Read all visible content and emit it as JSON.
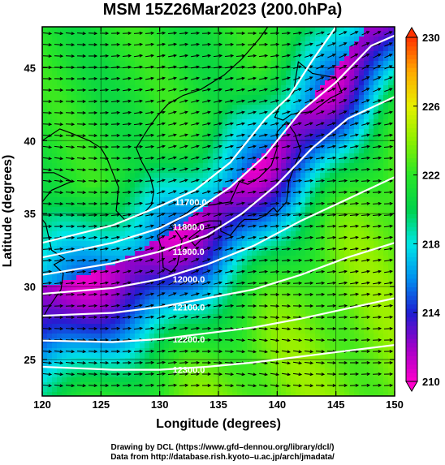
{
  "chart_data": {
    "type": "heatmap",
    "title": "MSM 15Z26Mar2023 (200.0hPa)",
    "xlabel": "Longitude (degrees)",
    "ylabel": "Latitude  (degrees)",
    "xlim": [
      120,
      150
    ],
    "ylim": [
      22.5,
      47.8
    ],
    "x_ticks": [
      120,
      125,
      130,
      135,
      140,
      145,
      150
    ],
    "y_ticks": [
      25,
      30,
      35,
      40,
      45
    ],
    "colorbar": {
      "min": 210,
      "max": 230,
      "ticks": [
        210,
        214,
        218,
        222,
        226,
        230
      ],
      "stops": [
        {
          "value": 210,
          "color": "#ff00cc"
        },
        {
          "value": 212,
          "color": "#a000c8"
        },
        {
          "value": 214,
          "color": "#1e1ed2"
        },
        {
          "value": 216,
          "color": "#0090f0"
        },
        {
          "value": 218,
          "color": "#00e6e6"
        },
        {
          "value": 220,
          "color": "#00d24b"
        },
        {
          "value": 222,
          "color": "#28e628"
        },
        {
          "value": 224,
          "color": "#8cf000"
        },
        {
          "value": 226,
          "color": "#e6f000"
        },
        {
          "value": 228,
          "color": "#ffaa00"
        },
        {
          "value": 230,
          "color": "#ff3200"
        }
      ]
    },
    "contour_labels": [
      "11700.0",
      "11800.0",
      "11900.0",
      "12000.0",
      "12100.0",
      "12200.0",
      "12300.0"
    ],
    "contours": [
      {
        "label": "11700.0",
        "label_pos": [
          131.3,
          35.8
        ],
        "points": [
          [
            120,
            33.0
          ],
          [
            126,
            34.2
          ],
          [
            130,
            35.5
          ],
          [
            133,
            36.6
          ],
          [
            136,
            38.5
          ],
          [
            139,
            41.5
          ],
          [
            141,
            43.0
          ],
          [
            143,
            45.5
          ],
          [
            145,
            47.8
          ]
        ]
      },
      {
        "label": "11800.0",
        "label_pos": [
          131.1,
          34.1
        ],
        "points": [
          [
            120,
            32.0
          ],
          [
            126,
            33.0
          ],
          [
            130,
            34.0
          ],
          [
            133,
            35.2
          ],
          [
            136,
            36.8
          ],
          [
            139,
            39.0
          ],
          [
            142,
            42.0
          ],
          [
            145,
            44.0
          ],
          [
            148,
            46.5
          ],
          [
            150,
            47.2
          ]
        ]
      },
      {
        "label": "11900.0",
        "label_pos": [
          131.1,
          32.4
        ],
        "points": [
          [
            120,
            30.8
          ],
          [
            126,
            31.6
          ],
          [
            130,
            32.4
          ],
          [
            134,
            33.5
          ],
          [
            137,
            35.0
          ],
          [
            140,
            37.0
          ],
          [
            143,
            39.5
          ],
          [
            146,
            41.5
          ],
          [
            150,
            43.0
          ]
        ]
      },
      {
        "label": "12000.0",
        "label_pos": [
          131.1,
          30.5
        ],
        "points": [
          [
            120,
            29.5
          ],
          [
            126,
            29.9
          ],
          [
            130,
            30.5
          ],
          [
            134,
            31.5
          ],
          [
            138,
            32.8
          ],
          [
            142,
            34.5
          ],
          [
            146,
            36.0
          ],
          [
            150,
            37.5
          ]
        ]
      },
      {
        "label": "12100.0",
        "label_pos": [
          131.1,
          28.6
        ],
        "points": [
          [
            120,
            28.0
          ],
          [
            126,
            28.2
          ],
          [
            130,
            28.6
          ],
          [
            134,
            29.2
          ],
          [
            138,
            29.8
          ],
          [
            142,
            30.8
          ],
          [
            146,
            32.0
          ],
          [
            150,
            33.0
          ]
        ]
      },
      {
        "label": "12200.0",
        "label_pos": [
          131.1,
          26.4
        ],
        "points": [
          [
            120,
            26.3
          ],
          [
            126,
            26.2
          ],
          [
            130,
            26.4
          ],
          [
            134,
            26.8
          ],
          [
            138,
            27.2
          ],
          [
            142,
            27.8
          ],
          [
            146,
            28.5
          ],
          [
            150,
            29.2
          ]
        ]
      },
      {
        "label": "12300.0",
        "label_pos": [
          131.1,
          24.3
        ],
        "points": [
          [
            120,
            24.5
          ],
          [
            126,
            24.3
          ],
          [
            130,
            24.3
          ],
          [
            134,
            24.5
          ],
          [
            138,
            24.8
          ],
          [
            142,
            25.2
          ],
          [
            146,
            25.6
          ],
          [
            150,
            26.0
          ]
        ]
      }
    ]
  },
  "credits": {
    "line1": "Drawing by DCL (https://www.gfd–dennou.org/library/dcl/)",
    "line2": "Data from http://database.rish.kyoto–u.ac.jp/arch/jmadata/"
  }
}
